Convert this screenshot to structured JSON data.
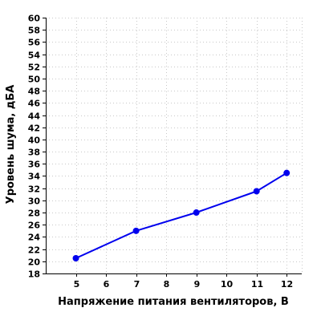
{
  "chart_data": {
    "type": "line",
    "title": "",
    "xlabel": "Напряжение питания вентиляторов, В",
    "ylabel": "Уровень шума, дБА",
    "xlim": [
      4,
      12.5
    ],
    "ylim": [
      18,
      60
    ],
    "x_ticks": [
      5,
      6,
      7,
      8,
      9,
      10,
      11,
      12
    ],
    "y_ticks": [
      18,
      20,
      22,
      24,
      26,
      28,
      30,
      32,
      34,
      36,
      38,
      40,
      42,
      44,
      46,
      48,
      50,
      52,
      54,
      56,
      58,
      60
    ],
    "grid": true,
    "legend": "none",
    "series": [
      {
        "color": "#0000ee",
        "points": [
          {
            "x": 5,
            "y": 20.5
          },
          {
            "x": 7,
            "y": 25
          },
          {
            "x": 9,
            "y": 28
          },
          {
            "x": 11,
            "y": 31.5
          },
          {
            "x": 12,
            "y": 34.5
          }
        ]
      }
    ],
    "grid_color": "#c8c8c8",
    "axis_color": "#000000"
  }
}
